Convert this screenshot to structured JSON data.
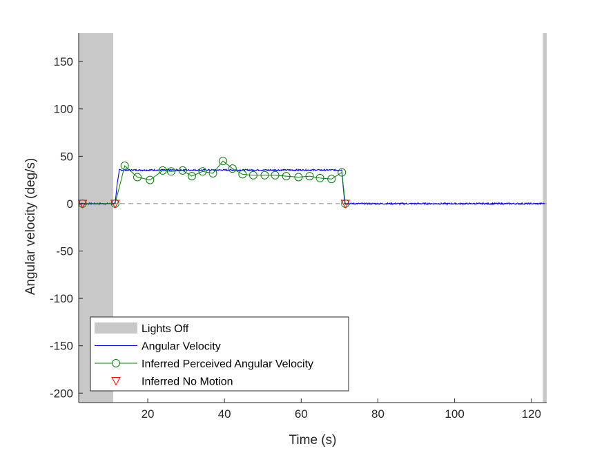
{
  "chart_data": {
    "type": "line",
    "title": "",
    "xlabel": "Time (s)",
    "ylabel": "Angular velocity (deg/s)",
    "xlim": [
      2,
      124
    ],
    "ylim": [
      -210,
      180
    ],
    "x_ticks": [
      20,
      40,
      60,
      80,
      100,
      120
    ],
    "y_ticks": [
      150,
      100,
      50,
      0,
      -50,
      -100,
      -150,
      -200
    ],
    "grid": false,
    "legend_position": "bottom-left",
    "zero_reference_line": true,
    "lights_off_intervals": [
      [
        2,
        11
      ],
      [
        123,
        124
      ]
    ],
    "series": [
      {
        "name": "Angular Velocity",
        "color": "#0000ff",
        "style": "line",
        "x": [
          2,
          11.5,
          12.0,
          12.6,
          70.6,
          71.0,
          71.4,
          123.5
        ],
        "y": [
          0,
          0,
          20,
          35.5,
          35.5,
          15,
          0,
          0
        ],
        "noise_amplitude": 0.8
      },
      {
        "name": "Inferred Perceived Angular Velocity",
        "color": "#008000",
        "style": "line-circle",
        "x": [
          3,
          11.5,
          14,
          17.3,
          20.6,
          23.9,
          26.1,
          29.1,
          31.5,
          34.3,
          37.0,
          39.6,
          42.1,
          44.7,
          47.5,
          50.5,
          53.2,
          56.1,
          59.3,
          62.2,
          64.9,
          67.9,
          70.6,
          71.5
        ],
        "y": [
          0,
          0,
          40,
          28,
          25,
          35,
          34,
          35,
          29,
          34,
          32,
          45,
          37,
          31,
          30,
          30,
          30,
          29,
          28,
          29,
          27,
          26,
          33,
          0
        ]
      },
      {
        "name": "Inferred No Motion",
        "color": "#ff0000",
        "style": "marker-triangle-down",
        "x": [
          3,
          11.5,
          71.5
        ],
        "y": [
          0,
          0,
          0
        ]
      }
    ],
    "legend": [
      {
        "label": "Lights Off",
        "color": "#c8c8c8",
        "kind": "patch"
      },
      {
        "label": "Angular Velocity",
        "color": "#0000ff",
        "kind": "line"
      },
      {
        "label": "Inferred Perceived Angular Velocity",
        "color": "#008000",
        "kind": "line-circle"
      },
      {
        "label": "Inferred No Motion",
        "color": "#ff0000",
        "kind": "triangle"
      }
    ]
  }
}
